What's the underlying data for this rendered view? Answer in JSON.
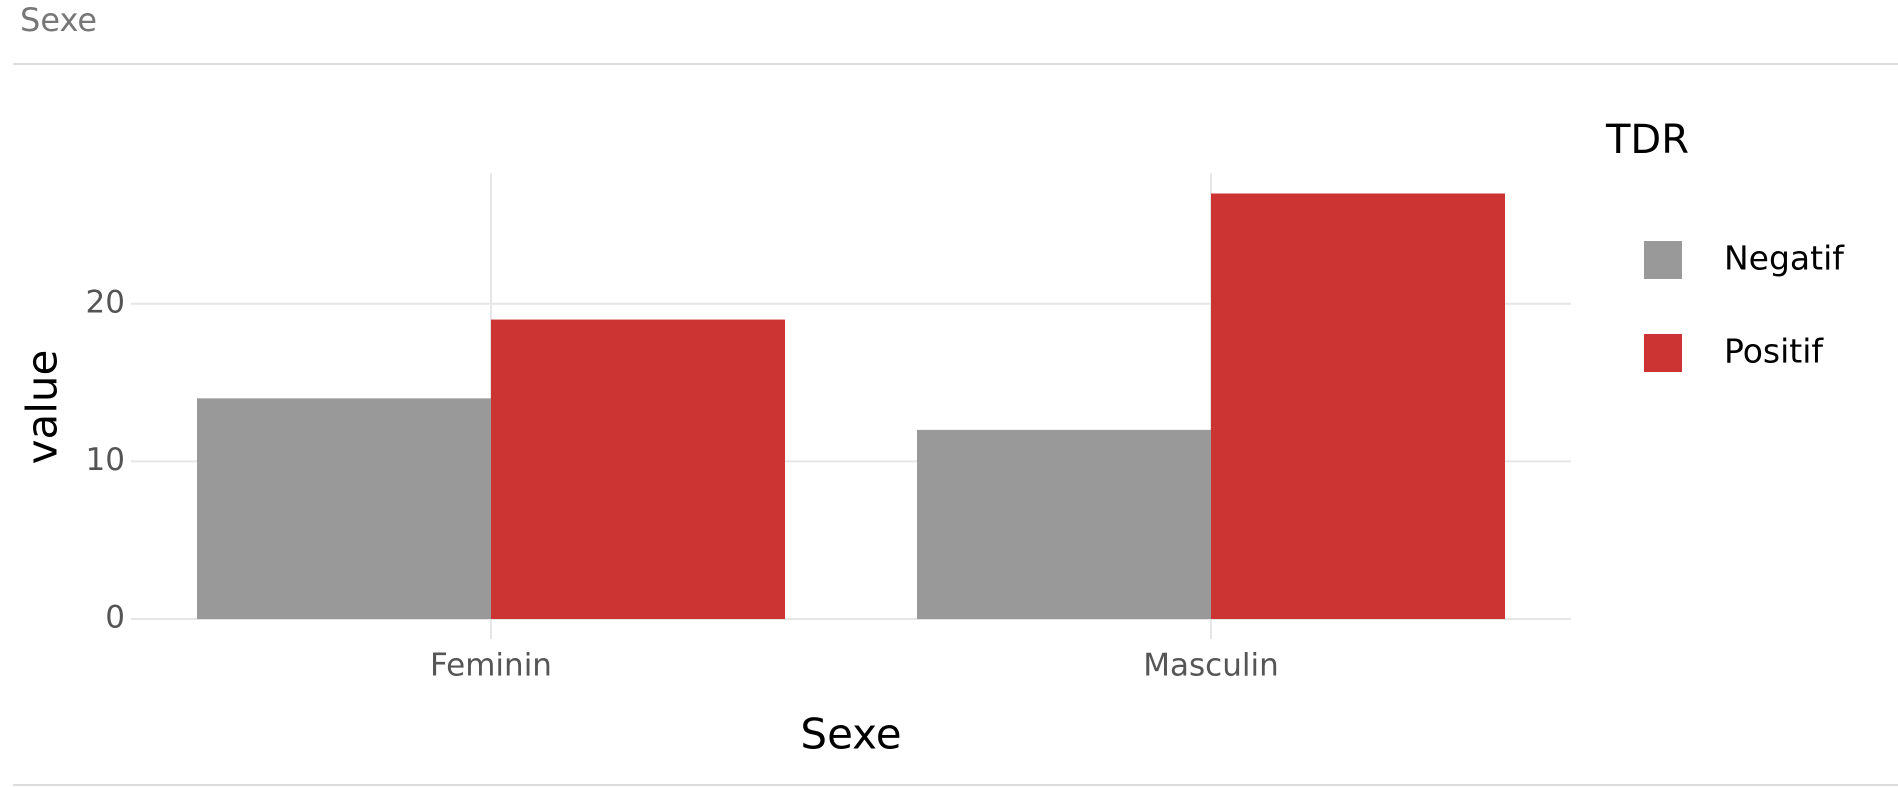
{
  "card_title": "Sexe",
  "chart_data": {
    "type": "bar",
    "x_label": "Sexe",
    "y_label": "value",
    "legend_title": "TDR",
    "categories": [
      "Feminin",
      "Masculin"
    ],
    "series": [
      {
        "name": "Negatif",
        "color": "#999999",
        "values": [
          14,
          12
        ]
      },
      {
        "name": "Positif",
        "color": "#cc3333",
        "values": [
          19,
          27
        ]
      }
    ],
    "ylim": [
      0,
      28.3
    ],
    "yticks": [
      0,
      10,
      20
    ],
    "grid": true,
    "legend": "right"
  }
}
